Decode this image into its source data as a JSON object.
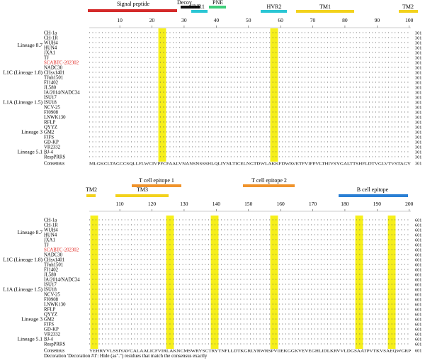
{
  "panels": [
    {
      "id": "top",
      "features": [
        {
          "label": "Signal peptide",
          "color": "#d42a2a"
        },
        {
          "label": "Decoy",
          "color": "#111111"
        },
        {
          "label": "HVR1",
          "color": "#2ac6d4"
        },
        {
          "label": "PNE",
          "color": "#3fce7a"
        },
        {
          "label": "HVR2",
          "color": "#2ac6d4"
        },
        {
          "label": "TM1",
          "color": "#f3d21c"
        },
        {
          "label": "TM2",
          "color": "#f3d21c"
        }
      ],
      "ticks": [
        "10",
        "20",
        "30",
        "40",
        "50",
        "60",
        "70",
        "80",
        "90",
        "100"
      ],
      "end_number": "301",
      "consensus_seq": "MLGKCLTAGCCSQLLFLWCIVPFCFAALVNANSNSSSHLQLIYNLTICELNGTDWLAKKFDWAVETFVIFPVLTHIVSYGALTTSHFLDTVGLVTVSTAGY"
    },
    {
      "id": "bottom",
      "features": [
        {
          "label": "T cell epitope 1",
          "color": "#f0932b"
        },
        {
          "label": "TM2",
          "color": "#f3d21c"
        },
        {
          "label": "TM3",
          "color": "#f3d21c"
        },
        {
          "label": "T cell epitope 2",
          "color": "#f0932b"
        },
        {
          "label": "B cell epitope",
          "color": "#2a7fd4"
        }
      ],
      "ticks": [
        "110",
        "120",
        "130",
        "140",
        "150",
        "160",
        "170",
        "180",
        "190",
        "200"
      ],
      "end_number": "601",
      "consensus_seq": "YEHRYVLSSIYAVCALAALICFVIRLAKNCMSWRYSCTRYTNFLLDTKGRLYRWRSPVIIEKGGKVEVEGHLIDLKRVVLDGSAATPVTKVSAEQWGRP"
    }
  ],
  "sequences": [
    {
      "name": "CH-1a",
      "highlight": false
    },
    {
      "name": "CH-1R",
      "highlight": false
    },
    {
      "name": "WUH4",
      "highlight": false
    },
    {
      "name": "HUN4",
      "highlight": false
    },
    {
      "name": "JXA1",
      "highlight": false
    },
    {
      "name": "TJ",
      "highlight": false
    },
    {
      "name": "SCABTC-202302",
      "highlight": true
    },
    {
      "name": "NADC30",
      "highlight": false
    },
    {
      "name": "CHsx1401",
      "highlight": false
    },
    {
      "name": "TJnh1501",
      "highlight": false
    },
    {
      "name": "FJ1402",
      "highlight": false
    },
    {
      "name": "JL580",
      "highlight": false
    },
    {
      "name": "IA/2014/NADC34",
      "highlight": false
    },
    {
      "name": "ISU17",
      "highlight": false
    },
    {
      "name": "ISU18",
      "highlight": false
    },
    {
      "name": "NCV-25",
      "highlight": false
    },
    {
      "name": "FJ0908",
      "highlight": false
    },
    {
      "name": "LNWK130",
      "highlight": false
    },
    {
      "name": "RFLP",
      "highlight": false
    },
    {
      "name": "QYYZ",
      "highlight": false
    },
    {
      "name": "GM2",
      "highlight": false
    },
    {
      "name": "FJFS",
      "highlight": false
    },
    {
      "name": "GD-KP",
      "highlight": false
    },
    {
      "name": "VR2332",
      "highlight": false
    },
    {
      "name": "BJ-4",
      "highlight": false
    },
    {
      "name": "RespPRRS",
      "highlight": false
    }
  ],
  "consensus_label": "Consensus",
  "lineage_labels": [
    {
      "label": "Lineage 8.7",
      "row": 2.5
    },
    {
      "label": "L1C (Lineage 1.8)",
      "row": 8
    },
    {
      "label": "L1A (Lineage 1.5)",
      "row": 14
    },
    {
      "label": "Lineage 3",
      "row": 20
    },
    {
      "label": "Lineage 5.1",
      "row": 24
    }
  ],
  "footnote": "Decoration 'Decoration #1': Hide (as\".\") residues that match the consensus exactly",
  "colors": {
    "highlight_column": "#f6ef1a",
    "strain_highlight": "#e0201b",
    "dots": "#555555"
  }
}
